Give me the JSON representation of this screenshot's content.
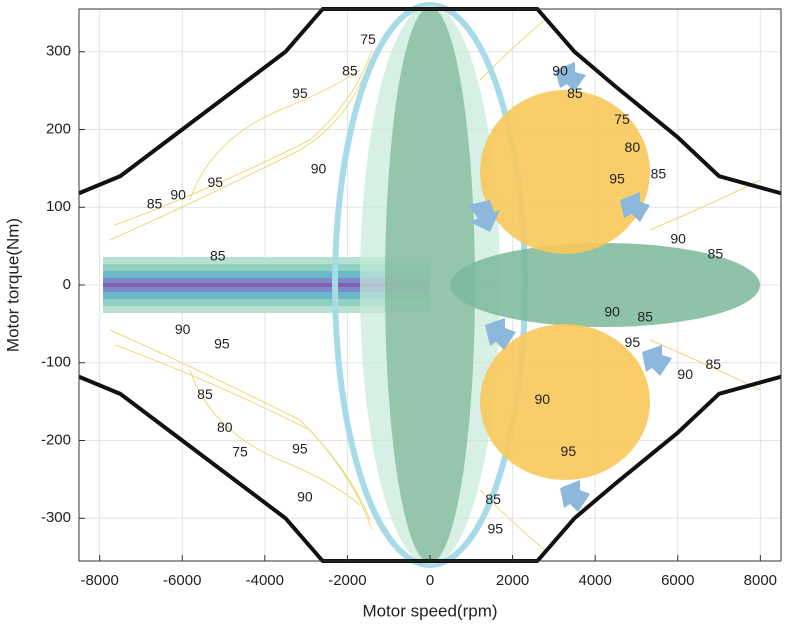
{
  "chart_data": {
    "type": "line",
    "x_label": "Motor speed(rpm)",
    "y_label": "Motor torque(Nm)",
    "xlim": [
      -8500,
      8500
    ],
    "ylim": [
      -355,
      355
    ],
    "xticks": [
      -8000,
      -6000,
      -4000,
      -2000,
      0,
      2000,
      4000,
      6000,
      8000
    ],
    "yticks": [
      -300,
      -200,
      -100,
      0,
      100,
      200,
      300
    ],
    "grid": true,
    "x": [
      -8500,
      -7500,
      -6000,
      -4500,
      -3500,
      -2600,
      2600,
      3500,
      4500,
      6000,
      7000,
      8500
    ],
    "series": [
      {
        "color": "#111111",
        "values": [
          118,
          140,
          200,
          260,
          300,
          355,
          355,
          300,
          255,
          190,
          140,
          118
        ]
      },
      {
        "color": "#111111",
        "values": [
          -118,
          -140,
          -200,
          -260,
          -300,
          -355,
          -355,
          -300,
          -255,
          -190,
          -140,
          -118
        ]
      }
    ],
    "annotations": [
      {
        "text": "95",
        "x": -3150,
        "y": 245
      },
      {
        "text": "90",
        "x": -2700,
        "y": 148
      },
      {
        "text": "95",
        "x": -5200,
        "y": 131
      },
      {
        "text": "85",
        "x": -6670,
        "y": 103
      },
      {
        "text": "90",
        "x": -6100,
        "y": 115
      },
      {
        "text": "85",
        "x": -5140,
        "y": 36
      },
      {
        "text": "85",
        "x": -5450,
        "y": -142
      },
      {
        "text": "80",
        "x": -4970,
        "y": -184
      },
      {
        "text": "75",
        "x": -4600,
        "y": -216
      },
      {
        "text": "90",
        "x": -5990,
        "y": -58
      },
      {
        "text": "95",
        "x": -5040,
        "y": -77
      },
      {
        "text": "95",
        "x": -3150,
        "y": -212
      },
      {
        "text": "90",
        "x": -3030,
        "y": -274
      },
      {
        "text": "85",
        "x": -1940,
        "y": 274
      },
      {
        "text": "75",
        "x": -1500,
        "y": 315
      },
      {
        "text": "90",
        "x": 3150,
        "y": 274
      },
      {
        "text": "85",
        "x": 3510,
        "y": 245
      },
      {
        "text": "75",
        "x": 4650,
        "y": 212
      },
      {
        "text": "80",
        "x": 4900,
        "y": 176
      },
      {
        "text": "85",
        "x": 5530,
        "y": 142
      },
      {
        "text": "95",
        "x": 4530,
        "y": 135
      },
      {
        "text": "90",
        "x": 6010,
        "y": 58
      },
      {
        "text": "85",
        "x": 6910,
        "y": 39
      },
      {
        "text": "90",
        "x": 4410,
        "y": -36
      },
      {
        "text": "85",
        "x": 5210,
        "y": -42
      },
      {
        "text": "95",
        "x": 4900,
        "y": -75
      },
      {
        "text": "90",
        "x": 2720,
        "y": -148
      },
      {
        "text": "95",
        "x": 3350,
        "y": -215
      },
      {
        "text": "90",
        "x": 6180,
        "y": -116
      },
      {
        "text": "85",
        "x": 6860,
        "y": -103
      },
      {
        "text": "85",
        "x": 1530,
        "y": -277
      },
      {
        "text": "95",
        "x": 1580,
        "y": -315
      }
    ]
  }
}
